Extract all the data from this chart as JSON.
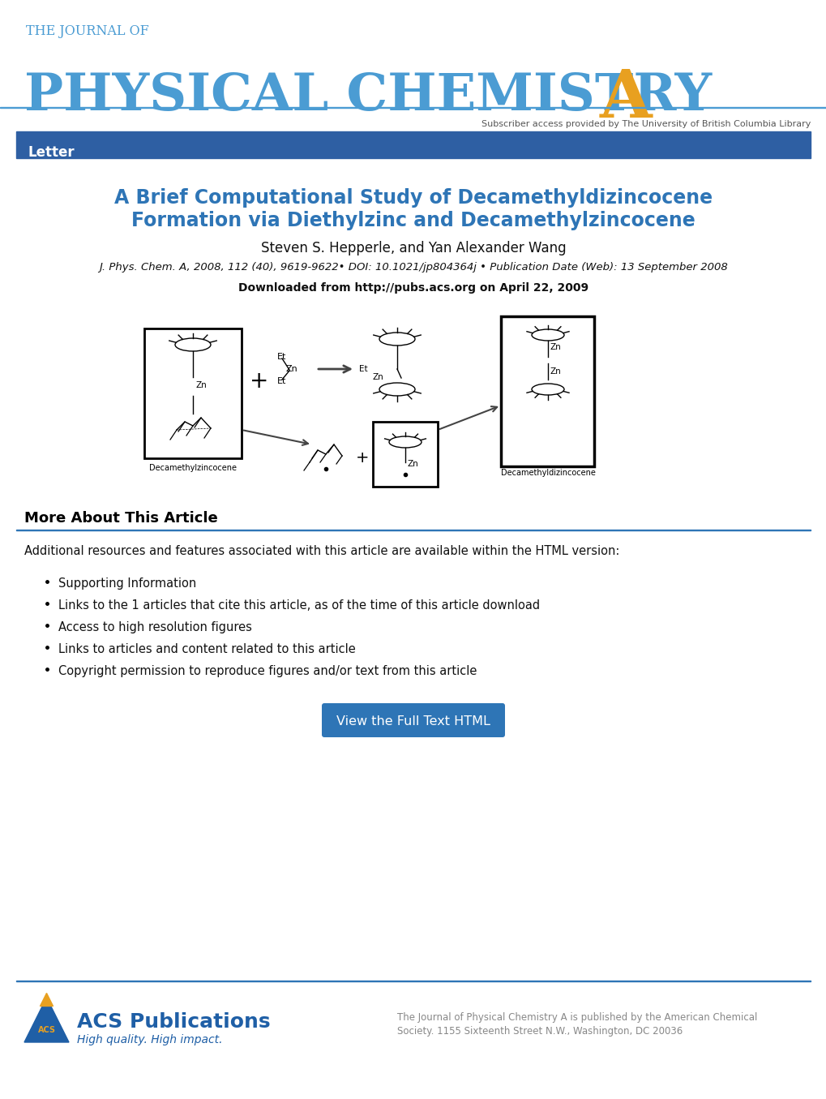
{
  "bg_color": "#ffffff",
  "journal_blue": "#4b9cd3",
  "journal_blue_dark": "#2e75b6",
  "gold_A": "#e8a020",
  "banner_blue": "#2e5fa3",
  "banner_text": "Letter",
  "article_title_line1": "A Brief Computational Study of Decamethyldizincocene",
  "article_title_line2": "Formation via Diethylzinc and Decamethylzincocene",
  "authors": "Steven S. Hepperle, and Yan Alexander Wang",
  "citation": "J. Phys. Chem. A, 2008, 112 (40), 9619-9622• DOI: 10.1021/jp804364j • Publication Date (Web): 13 September 2008",
  "download": "Downloaded from http://pubs.acs.org on April 22, 2009",
  "subscriber_text": "Subscriber access provided by The University of British Columbia Library",
  "section_title": "More About This Article",
  "section_intro": "Additional resources and features associated with this article are available within the HTML version:",
  "bullet_items": [
    "Supporting Information",
    "Links to the 1 articles that cite this article, as of the time of this article download",
    "Access to high resolution figures",
    "Links to articles and content related to this article",
    "Copyright permission to reproduce figures and/or text from this article"
  ],
  "button_text": "View the Full Text HTML",
  "button_color": "#2e75b6",
  "footer_line1": "The Journal of Physical Chemistry A is published by the American Chemical",
  "footer_line2": "Society. 1155 Sixteenth Street N.W., Washington, DC 20036",
  "acs_blue": "#1f5fa6",
  "acs_gold": "#e8a020",
  "acs_tagline": "High quality. High impact.",
  "separator_color": "#2e75b6",
  "section_line_color": "#2e75b6"
}
